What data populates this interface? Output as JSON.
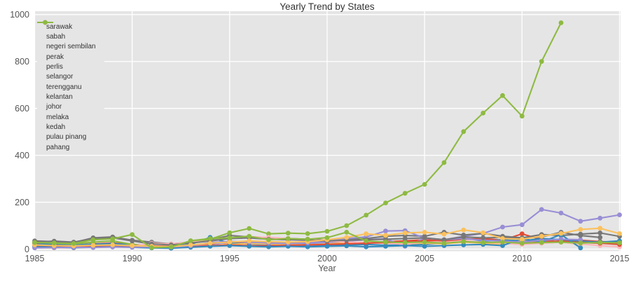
{
  "title": "Yearly Trend by States",
  "chart_data": {
    "type": "line",
    "title": "Yearly Trend by States",
    "xlabel": "Year",
    "ylabel": "",
    "xlim": [
      1985,
      2015
    ],
    "ylim": [
      0,
      1000
    ],
    "x_ticks": [
      1985,
      1990,
      1995,
      2000,
      2005,
      2010,
      2015
    ],
    "y_ticks": [
      0,
      200,
      400,
      600,
      800,
      1000
    ],
    "grid": true,
    "legend_position": "upper-left",
    "plot_bg_color": "#E5E5E5",
    "grid_color": "#FFFFFF",
    "tick_color": "#555555",
    "title_color": "#333333",
    "x": [
      1985,
      1986,
      1987,
      1988,
      1989,
      1990,
      1991,
      1992,
      1993,
      1994,
      1995,
      1996,
      1997,
      1998,
      1999,
      2000,
      2001,
      2002,
      2003,
      2004,
      2005,
      2006,
      2007,
      2008,
      2009,
      2010,
      2011,
      2012,
      2013,
      2014,
      2015
    ],
    "series": [
      {
        "name": "sarawak",
        "color": "#E24A33",
        "values": [
          25,
          20,
          17,
          22,
          26,
          20,
          14,
          12,
          18,
          22,
          28,
          25,
          22,
          25,
          28,
          30,
          26,
          27,
          32,
          35,
          40,
          35,
          42,
          45,
          38,
          65,
          40,
          30,
          38,
          32,
          30
        ]
      },
      {
        "name": "sabah",
        "color": "#348ABD",
        "values": [
          20,
          22,
          18,
          21,
          24,
          18,
          12,
          10,
          20,
          50,
          25,
          22,
          20,
          18,
          16,
          15,
          18,
          20,
          16,
          18,
          20,
          25,
          30,
          34,
          40,
          35,
          45,
          40,
          34,
          30,
          35
        ]
      },
      {
        "name": "negeri sembilan",
        "color": "#988ED5",
        "values": [
          8,
          6,
          7,
          10,
          12,
          10,
          8,
          6,
          12,
          15,
          33,
          30,
          28,
          25,
          22,
          28,
          34,
          40,
          45,
          12,
          47,
          40,
          55,
          67,
          94,
          104,
          169,
          154,
          119,
          132,
          146
        ]
      },
      {
        "name": "perak",
        "color": "#777777",
        "values": [
          35,
          32,
          28,
          48,
          52,
          38,
          30,
          22,
          30,
          40,
          58,
          52,
          48,
          45,
          42,
          38,
          42,
          45,
          55,
          58,
          55,
          72,
          60,
          67,
          55,
          48,
          62,
          58,
          64,
          69,
          54
        ]
      },
      {
        "name": "perlis",
        "color": "#FBC15E",
        "values": [
          7,
          5,
          8,
          10,
          12,
          10,
          8,
          5,
          10,
          14,
          20,
          24,
          22,
          20,
          18,
          22,
          26,
          30,
          25,
          22,
          26,
          22,
          30,
          25,
          20,
          35,
          25,
          30,
          20,
          null,
          null
        ]
      },
      {
        "name": "selangor",
        "color": "#8EBA42",
        "values": [
          30,
          25,
          22,
          30,
          35,
          20,
          12,
          10,
          33,
          42,
          70,
          88,
          65,
          68,
          66,
          76,
          100,
          145,
          197,
          238,
          276,
          369,
          501,
          580,
          655,
          567,
          800,
          965,
          null,
          null,
          null
        ]
      },
      {
        "name": "terengganu",
        "color": "#FFB5B8",
        "values": [
          8,
          6,
          5,
          8,
          10,
          12,
          25,
          22,
          30,
          35,
          47,
          53,
          50,
          45,
          40,
          35,
          30,
          28,
          25,
          22,
          30,
          28,
          35,
          30,
          25,
          20,
          25,
          30,
          22,
          15,
          10
        ]
      },
      {
        "name": "kelantan",
        "color": "#E24A33",
        "values": [
          15,
          12,
          10,
          14,
          16,
          12,
          8,
          6,
          10,
          14,
          18,
          15,
          14,
          16,
          18,
          20,
          22,
          25,
          28,
          30,
          35,
          38,
          45,
          40,
          35,
          25,
          30,
          35,
          28,
          25,
          20
        ]
      },
      {
        "name": "johor",
        "color": "#348ABD",
        "values": [
          10,
          8,
          6,
          8,
          10,
          8,
          5,
          4,
          8,
          12,
          15,
          12,
          10,
          12,
          10,
          12,
          14,
          10,
          12,
          15,
          12,
          15,
          18,
          20,
          15,
          45,
          30,
          62,
          5,
          null,
          null
        ]
      },
      {
        "name": "melaka",
        "color": "#988ED5",
        "values": [
          5,
          6,
          8,
          7,
          9,
          8,
          10,
          9,
          14,
          28,
          33,
          30,
          26,
          24,
          26,
          35,
          45,
          52,
          77,
          79,
          47,
          40,
          45,
          38,
          35,
          30,
          38,
          42,
          40,
          null,
          null
        ]
      },
      {
        "name": "kedah",
        "color": "#777777",
        "values": [
          30,
          34,
          30,
          45,
          48,
          35,
          22,
          18,
          26,
          35,
          45,
          48,
          42,
          40,
          38,
          35,
          38,
          40,
          42,
          45,
          48,
          40,
          52,
          48,
          50,
          45,
          52,
          72,
          58,
          50,
          null
        ]
      },
      {
        "name": "pulau pinang",
        "color": "#FBC15E",
        "values": [
          18,
          15,
          14,
          16,
          18,
          15,
          12,
          10,
          18,
          25,
          30,
          35,
          32,
          30,
          32,
          40,
          50,
          65,
          59,
          69,
          72,
          64,
          82,
          70,
          45,
          42,
          55,
          67,
          84,
          89,
          66
        ]
      },
      {
        "name": "pahang",
        "color": "#8EBA42",
        "values": [
          28,
          26,
          24,
          40,
          44,
          62,
          6,
          9,
          36,
          45,
          48,
          55,
          40,
          45,
          42,
          49,
          72,
          35,
          30,
          28,
          30,
          25,
          32,
          28,
          30,
          25,
          28,
          30,
          26,
          28,
          27
        ]
      }
    ]
  }
}
